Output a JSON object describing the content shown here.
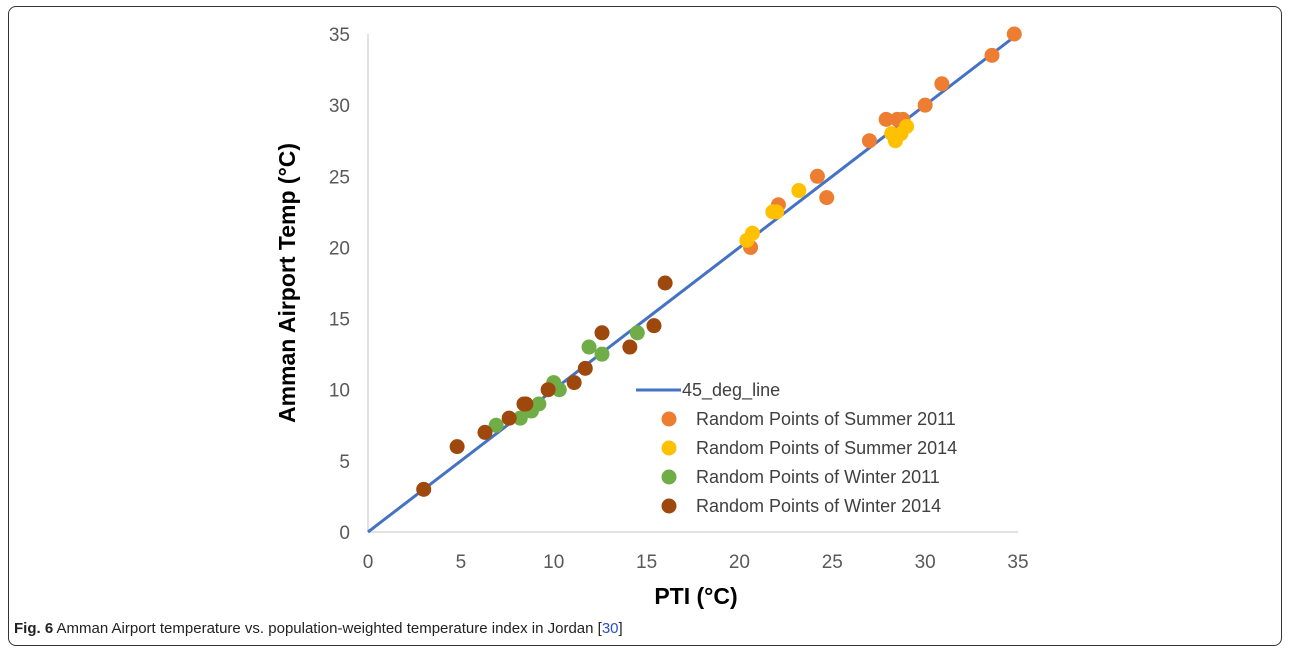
{
  "caption": {
    "label": "Fig. 6",
    "text": "Amman Airport temperature vs. population-weighted temperature index in Jordan [",
    "ref": "30",
    "close": "]"
  },
  "chart_data": {
    "type": "scatter",
    "xlabel": "PTI (°C)",
    "ylabel": "Amman Airport Temp (°C)",
    "xlim": [
      0,
      35
    ],
    "ylim": [
      0,
      35
    ],
    "xticks": [
      0,
      5,
      10,
      15,
      20,
      25,
      30,
      35
    ],
    "yticks": [
      0,
      5,
      10,
      15,
      20,
      25,
      30,
      35
    ],
    "grid": false,
    "legend_position": "bottom-right",
    "line": {
      "name": "45_deg_line",
      "color": "#4472c4",
      "points": [
        [
          0,
          0
        ],
        [
          35,
          35
        ]
      ]
    },
    "series": [
      {
        "name": "Random Points of Summer 2011",
        "color": "#ed7d31",
        "points": [
          [
            20.6,
            20.0
          ],
          [
            22.1,
            23.0
          ],
          [
            24.2,
            25.0
          ],
          [
            24.7,
            23.5
          ],
          [
            27.0,
            27.5
          ],
          [
            27.9,
            29.0
          ],
          [
            28.5,
            29.0
          ],
          [
            28.8,
            29.0
          ],
          [
            30.0,
            30.0
          ],
          [
            30.9,
            31.5
          ],
          [
            33.6,
            33.5
          ],
          [
            34.8,
            35.0
          ]
        ]
      },
      {
        "name": "Random Points of Summer 2014",
        "color": "#ffc000",
        "points": [
          [
            20.4,
            20.5
          ],
          [
            20.7,
            21.0
          ],
          [
            21.8,
            22.5
          ],
          [
            22.0,
            22.5
          ],
          [
            23.2,
            24.0
          ],
          [
            28.2,
            28.0
          ],
          [
            28.4,
            27.5
          ],
          [
            28.7,
            28.0
          ],
          [
            29.0,
            28.5
          ]
        ]
      },
      {
        "name": "Random Points of Winter 2011",
        "color": "#70ad47",
        "points": [
          [
            6.9,
            7.5
          ],
          [
            8.2,
            8.0
          ],
          [
            8.8,
            8.5
          ],
          [
            9.2,
            9.0
          ],
          [
            10.0,
            10.5
          ],
          [
            10.3,
            10.0
          ],
          [
            11.9,
            13.0
          ],
          [
            12.6,
            12.5
          ],
          [
            14.5,
            14.0
          ]
        ]
      },
      {
        "name": "Random Points of Winter 2014",
        "color": "#9e480e",
        "points": [
          [
            3.0,
            3.0
          ],
          [
            4.8,
            6.0
          ],
          [
            6.3,
            7.0
          ],
          [
            7.6,
            8.0
          ],
          [
            8.4,
            9.0
          ],
          [
            8.5,
            9.0
          ],
          [
            9.7,
            10.0
          ],
          [
            11.1,
            10.5
          ],
          [
            11.7,
            11.5
          ],
          [
            12.6,
            14.0
          ],
          [
            14.1,
            13.0
          ],
          [
            15.4,
            14.5
          ],
          [
            16.0,
            17.5
          ]
        ]
      }
    ]
  }
}
